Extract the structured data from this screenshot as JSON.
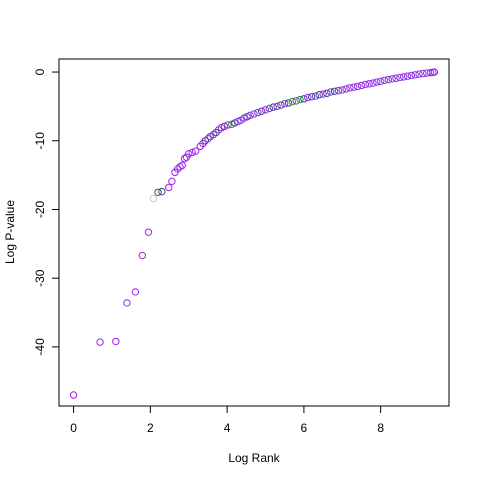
{
  "chart_data": {
    "type": "scatter",
    "title": "",
    "xlabel": "Log Rank",
    "ylabel": "Log P-value",
    "xlim": [
      -0.38,
      9.78
    ],
    "ylim": [
      -48.6,
      1.9
    ],
    "x_ticks": [
      0,
      2,
      4,
      6,
      8
    ],
    "y_ticks": [
      -40,
      -30,
      -20,
      -10,
      0
    ],
    "x_tick_labels": [
      "0",
      "2",
      "4",
      "6",
      "8"
    ],
    "y_tick_labels": [
      "-40",
      "-30",
      "-20",
      "-10",
      "0"
    ],
    "grid": false,
    "legend": "none",
    "colors": {
      "purple": "#a020f0",
      "violet": "#7b3fd6",
      "navy": "#2f4f7f",
      "green": "#1e9e1e",
      "gray": "#c8c8c8"
    },
    "points": [
      {
        "x": 0.0,
        "y": -47.0,
        "c": "purple"
      },
      {
        "x": 0.69,
        "y": -39.3,
        "c": "purple"
      },
      {
        "x": 1.1,
        "y": -39.2,
        "c": "purple"
      },
      {
        "x": 1.39,
        "y": -33.6,
        "c": "purple"
      },
      {
        "x": 1.61,
        "y": -32.0,
        "c": "purple"
      },
      {
        "x": 1.79,
        "y": -26.7,
        "c": "purple"
      },
      {
        "x": 1.95,
        "y": -23.3,
        "c": "purple"
      },
      {
        "x": 2.08,
        "y": -18.4,
        "c": "gray"
      },
      {
        "x": 2.2,
        "y": -17.5,
        "c": "navy"
      },
      {
        "x": 2.3,
        "y": -17.4,
        "c": "navy"
      },
      {
        "x": 2.48,
        "y": -16.8,
        "c": "purple"
      },
      {
        "x": 2.56,
        "y": -15.9,
        "c": "purple"
      },
      {
        "x": 2.64,
        "y": -14.6,
        "c": "purple"
      },
      {
        "x": 2.71,
        "y": -14.1,
        "c": "purple"
      },
      {
        "x": 2.77,
        "y": -13.8,
        "c": "purple"
      },
      {
        "x": 2.83,
        "y": -13.6,
        "c": "purple"
      },
      {
        "x": 2.89,
        "y": -12.6,
        "c": "purple"
      },
      {
        "x": 2.94,
        "y": -12.4,
        "c": "purple"
      },
      {
        "x": 3.0,
        "y": -11.9,
        "c": "purple"
      },
      {
        "x": 3.09,
        "y": -11.7,
        "c": "purple"
      },
      {
        "x": 3.18,
        "y": -11.5,
        "c": "purple"
      },
      {
        "x": 3.3,
        "y": -10.8,
        "c": "purple"
      },
      {
        "x": 3.37,
        "y": -10.4,
        "c": "purple"
      },
      {
        "x": 3.43,
        "y": -10.0,
        "c": "navy"
      },
      {
        "x": 3.5,
        "y": -9.7,
        "c": "purple"
      },
      {
        "x": 3.56,
        "y": -9.4,
        "c": "navy"
      },
      {
        "x": 3.64,
        "y": -9.1,
        "c": "purple"
      },
      {
        "x": 3.71,
        "y": -8.8,
        "c": "navy"
      },
      {
        "x": 3.78,
        "y": -8.4,
        "c": "violet"
      },
      {
        "x": 3.85,
        "y": -8.1,
        "c": "purple"
      },
      {
        "x": 3.93,
        "y": -7.9,
        "c": "navy"
      },
      {
        "x": 4.02,
        "y": -7.7,
        "c": "purple"
      },
      {
        "x": 4.12,
        "y": -7.6,
        "c": "green"
      },
      {
        "x": 4.2,
        "y": -7.4,
        "c": "navy"
      },
      {
        "x": 4.28,
        "y": -7.2,
        "c": "purple"
      },
      {
        "x": 4.36,
        "y": -7.0,
        "c": "violet"
      },
      {
        "x": 4.44,
        "y": -6.7,
        "c": "purple"
      },
      {
        "x": 4.52,
        "y": -6.5,
        "c": "navy"
      },
      {
        "x": 4.6,
        "y": -6.3,
        "c": "purple"
      },
      {
        "x": 4.7,
        "y": -6.1,
        "c": "violet"
      },
      {
        "x": 4.8,
        "y": -5.9,
        "c": "purple"
      },
      {
        "x": 4.9,
        "y": -5.7,
        "c": "navy"
      },
      {
        "x": 5.0,
        "y": -5.5,
        "c": "purple"
      },
      {
        "x": 5.1,
        "y": -5.3,
        "c": "violet"
      },
      {
        "x": 5.2,
        "y": -5.1,
        "c": "navy"
      },
      {
        "x": 5.3,
        "y": -5.0,
        "c": "purple"
      },
      {
        "x": 5.4,
        "y": -4.8,
        "c": "navy"
      },
      {
        "x": 5.5,
        "y": -4.6,
        "c": "purple"
      },
      {
        "x": 5.6,
        "y": -4.5,
        "c": "navy"
      },
      {
        "x": 5.7,
        "y": -4.3,
        "c": "green"
      },
      {
        "x": 5.8,
        "y": -4.2,
        "c": "purple"
      },
      {
        "x": 5.9,
        "y": -4.0,
        "c": "green"
      },
      {
        "x": 6.0,
        "y": -3.9,
        "c": "navy"
      },
      {
        "x": 6.1,
        "y": -3.7,
        "c": "purple"
      },
      {
        "x": 6.2,
        "y": -3.6,
        "c": "navy"
      },
      {
        "x": 6.3,
        "y": -3.5,
        "c": "violet"
      },
      {
        "x": 6.4,
        "y": -3.3,
        "c": "navy"
      },
      {
        "x": 6.5,
        "y": -3.2,
        "c": "purple"
      },
      {
        "x": 6.6,
        "y": -3.1,
        "c": "navy"
      },
      {
        "x": 6.7,
        "y": -2.9,
        "c": "violet"
      },
      {
        "x": 6.8,
        "y": -2.8,
        "c": "navy"
      },
      {
        "x": 6.9,
        "y": -2.7,
        "c": "purple"
      },
      {
        "x": 7.0,
        "y": -2.6,
        "c": "violet"
      },
      {
        "x": 7.1,
        "y": -2.45,
        "c": "purple"
      },
      {
        "x": 7.2,
        "y": -2.3,
        "c": "violet"
      },
      {
        "x": 7.3,
        "y": -2.2,
        "c": "purple"
      },
      {
        "x": 7.4,
        "y": -2.1,
        "c": "violet"
      },
      {
        "x": 7.5,
        "y": -1.95,
        "c": "purple"
      },
      {
        "x": 7.6,
        "y": -1.8,
        "c": "violet"
      },
      {
        "x": 7.7,
        "y": -1.7,
        "c": "purple"
      },
      {
        "x": 7.8,
        "y": -1.6,
        "c": "violet"
      },
      {
        "x": 7.9,
        "y": -1.45,
        "c": "purple"
      },
      {
        "x": 8.0,
        "y": -1.35,
        "c": "violet"
      },
      {
        "x": 8.1,
        "y": -1.2,
        "c": "purple"
      },
      {
        "x": 8.2,
        "y": -1.1,
        "c": "violet"
      },
      {
        "x": 8.3,
        "y": -1.0,
        "c": "purple"
      },
      {
        "x": 8.4,
        "y": -0.9,
        "c": "violet"
      },
      {
        "x": 8.5,
        "y": -0.8,
        "c": "purple"
      },
      {
        "x": 8.6,
        "y": -0.7,
        "c": "violet"
      },
      {
        "x": 8.7,
        "y": -0.6,
        "c": "purple"
      },
      {
        "x": 8.8,
        "y": -0.5,
        "c": "violet"
      },
      {
        "x": 8.9,
        "y": -0.4,
        "c": "purple"
      },
      {
        "x": 9.0,
        "y": -0.3,
        "c": "violet"
      },
      {
        "x": 9.1,
        "y": -0.22,
        "c": "purple"
      },
      {
        "x": 9.2,
        "y": -0.15,
        "c": "violet"
      },
      {
        "x": 9.3,
        "y": -0.08,
        "c": "purple"
      },
      {
        "x": 9.36,
        "y": -0.04,
        "c": "violet"
      },
      {
        "x": 9.4,
        "y": 0.0,
        "c": "purple"
      }
    ]
  }
}
